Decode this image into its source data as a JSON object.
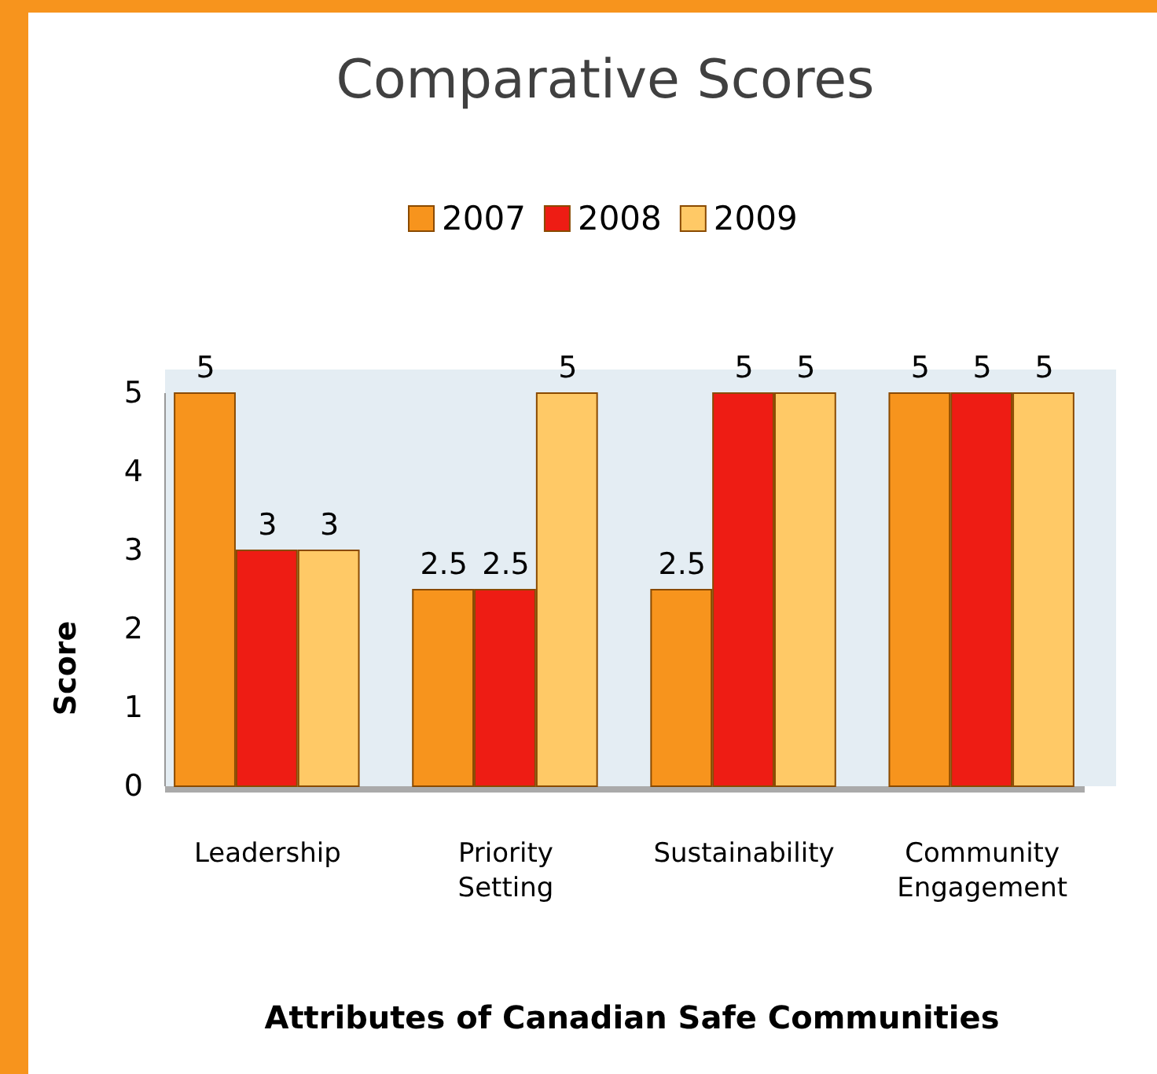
{
  "chart_data": {
    "type": "bar",
    "title": "Comparative Scores",
    "xlabel": "Attributes of Canadian Safe Communities",
    "ylabel": "Score",
    "categories": [
      "Leadership",
      "Priority Setting",
      "Sustainability",
      "Community Engagement"
    ],
    "series": [
      {
        "name": "2007",
        "color": "#f7941d",
        "values": [
          5,
          2.5,
          2.5,
          5
        ]
      },
      {
        "name": "2008",
        "color": "#ee1c14",
        "values": [
          3,
          2.5,
          5,
          5
        ]
      },
      {
        "name": "2009",
        "color": "#ffc966",
        "values": [
          3,
          5,
          5,
          5
        ]
      }
    ],
    "ylim": [
      0,
      5
    ],
    "yticks": [
      0,
      1,
      2,
      3,
      4,
      5
    ],
    "legend": "top",
    "data_labels": true
  }
}
